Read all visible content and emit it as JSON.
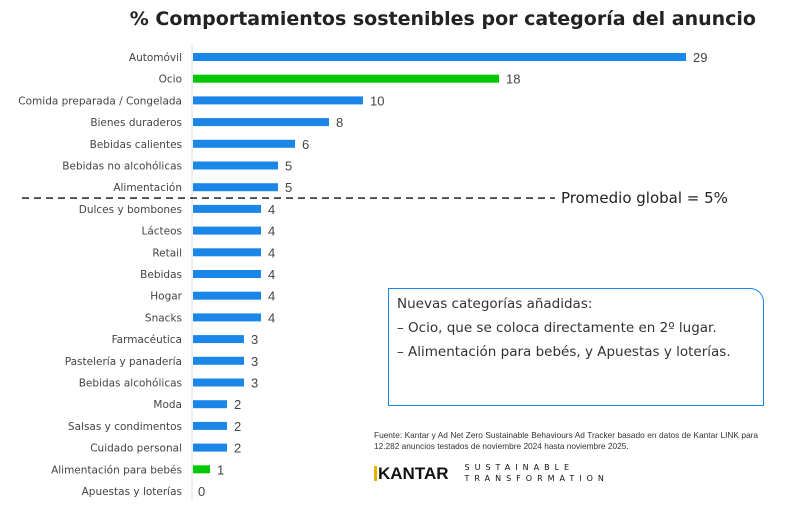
{
  "chart_data": {
    "type": "bar",
    "orientation": "horizontal",
    "title": "% Comportamientos sostenibles por categoría del anuncio",
    "categories": [
      "Automóvil",
      "Ocio",
      "Comida preparada / Congelada",
      "Bienes duraderos",
      "Bebidas calientes",
      "Bebidas no alcohólicas",
      "Alimentación",
      "Dulces y bombones",
      "Lácteos",
      "Retail",
      "Bebidas",
      "Hogar",
      "Snacks",
      "Farmacéutica",
      "Pastelería y panadería",
      "Bebidas alcohólicas",
      "Moda",
      "Salsas y condimentos",
      "Cuidado personal",
      "Alimentación para bebés",
      "Apuestas y loterías"
    ],
    "values": [
      29,
      18,
      10,
      8,
      6,
      5,
      5,
      4,
      4,
      4,
      4,
      4,
      4,
      3,
      3,
      3,
      2,
      2,
      2,
      1,
      0
    ],
    "highlighted": [
      "Ocio",
      "Alimentación para bebés"
    ],
    "colors": {
      "default": "#1a86e8",
      "highlight": "#00c800"
    },
    "reference_line": {
      "value": 5,
      "label": "Promedio global = 5%",
      "style": "dashed"
    },
    "grid": false
  },
  "note": {
    "heading": "Nuevas categorías añadidas:",
    "items": [
      "Ocio, que se coloca directamente en 2º lugar.",
      "Alimentación para bebés, y Apuestas y loterías."
    ]
  },
  "source": "Fuente: Kantar y Ad Net Zero Sustainable Behaviours Ad Tracker basado en datos de Kantar LINK para 12.282 anuncios testados de noviembre 2024 hasta noviembre 2025.",
  "logo": {
    "brand": "KANTAR",
    "line1": "SUSTAINABLE",
    "line2": "TRANSFORMATION"
  }
}
